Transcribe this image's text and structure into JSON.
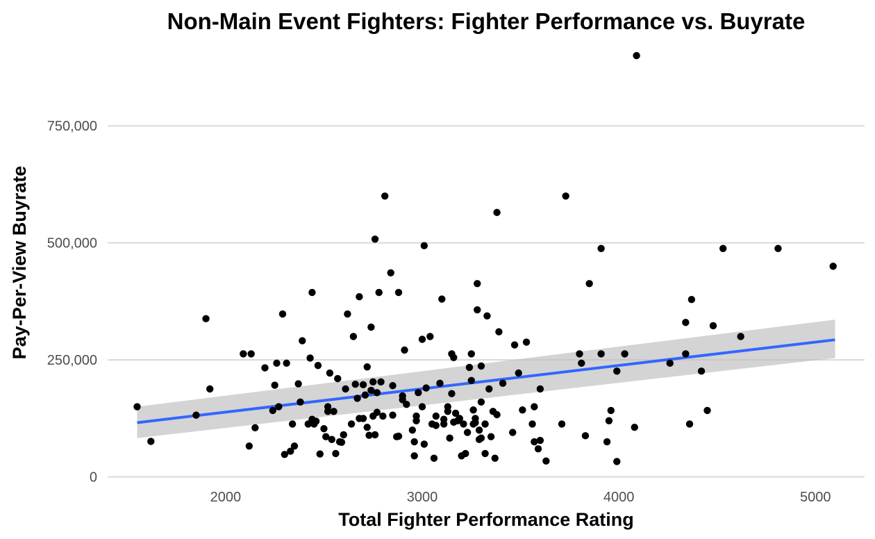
{
  "chart_data": {
    "type": "scatter",
    "title": "Non-Main Event Fighters: Fighter Performance vs. Buyrate",
    "xlabel": "Total Fighter Performance Rating",
    "ylabel": "Pay-Per-View Buyrate",
    "xlim": [
      1400,
      5250
    ],
    "ylim": [
      -5000,
      915000
    ],
    "x_ticks": [
      2000,
      3000,
      4000,
      5000
    ],
    "x_tick_labels": [
      "2000",
      "3000",
      "4000",
      "5000"
    ],
    "y_ticks": [
      0,
      250000,
      500000,
      750000
    ],
    "y_tick_labels": [
      "0",
      "250,000",
      "500,000",
      "750,000"
    ],
    "grid": true,
    "grid_lines": "horizontal major",
    "point_color": "#000000",
    "trend": {
      "method": "linear fit with 95% confidence band",
      "line_color": "#3366ff",
      "band_color": "#bdbdbd",
      "x": [
        1550,
        5100
      ],
      "y": [
        116000,
        293000
      ],
      "ci_lower": [
        83000,
        254000
      ],
      "ci_upper": [
        150000,
        336000
      ]
    },
    "points": [
      [
        1550,
        150000
      ],
      [
        1620,
        76000
      ],
      [
        1850,
        132000
      ],
      [
        1900,
        338000
      ],
      [
        1920,
        188000
      ],
      [
        2090,
        263000
      ],
      [
        2120,
        66000
      ],
      [
        2130,
        263000
      ],
      [
        2150,
        105000
      ],
      [
        2200,
        233000
      ],
      [
        2240,
        142000
      ],
      [
        2250,
        196000
      ],
      [
        2260,
        243000
      ],
      [
        2270,
        150000
      ],
      [
        2290,
        348000
      ],
      [
        2300,
        48000
      ],
      [
        2310,
        243000
      ],
      [
        2330,
        55000
      ],
      [
        2340,
        113000
      ],
      [
        2350,
        66000
      ],
      [
        2370,
        199000
      ],
      [
        2380,
        160000
      ],
      [
        2390,
        291000
      ],
      [
        2420,
        113000
      ],
      [
        2430,
        254000
      ],
      [
        2440,
        394000
      ],
      [
        2440,
        123000
      ],
      [
        2450,
        113000
      ],
      [
        2460,
        119000
      ],
      [
        2470,
        238000
      ],
      [
        2480,
        49000
      ],
      [
        2500,
        103000
      ],
      [
        2510,
        86000
      ],
      [
        2520,
        140000
      ],
      [
        2520,
        150000
      ],
      [
        2530,
        222000
      ],
      [
        2540,
        80000
      ],
      [
        2550,
        140000
      ],
      [
        2560,
        50000
      ],
      [
        2570,
        210000
      ],
      [
        2580,
        75000
      ],
      [
        2590,
        74000
      ],
      [
        2600,
        90000
      ],
      [
        2610,
        188000
      ],
      [
        2620,
        348000
      ],
      [
        2640,
        113000
      ],
      [
        2650,
        300000
      ],
      [
        2660,
        198000
      ],
      [
        2670,
        168000
      ],
      [
        2680,
        125000
      ],
      [
        2680,
        385000
      ],
      [
        2700,
        197000
      ],
      [
        2700,
        125000
      ],
      [
        2710,
        175000
      ],
      [
        2720,
        235000
      ],
      [
        2720,
        106000
      ],
      [
        2730,
        89000
      ],
      [
        2740,
        185000
      ],
      [
        2740,
        320000
      ],
      [
        2750,
        203000
      ],
      [
        2750,
        130000
      ],
      [
        2760,
        90000
      ],
      [
        2760,
        508000
      ],
      [
        2770,
        180000
      ],
      [
        2770,
        138000
      ],
      [
        2780,
        394000
      ],
      [
        2790,
        203000
      ],
      [
        2800,
        130000
      ],
      [
        2810,
        600000
      ],
      [
        2840,
        436000
      ],
      [
        2850,
        195000
      ],
      [
        2850,
        132000
      ],
      [
        2870,
        86000
      ],
      [
        2880,
        394000
      ],
      [
        2880,
        87000
      ],
      [
        2900,
        173000
      ],
      [
        2900,
        165000
      ],
      [
        2910,
        271000
      ],
      [
        2920,
        155000
      ],
      [
        2950,
        100000
      ],
      [
        2960,
        45000
      ],
      [
        2960,
        75000
      ],
      [
        2970,
        130000
      ],
      [
        2970,
        120000
      ],
      [
        2980,
        180000
      ],
      [
        3000,
        294000
      ],
      [
        3000,
        150000
      ],
      [
        3010,
        494000
      ],
      [
        3010,
        70000
      ],
      [
        3020,
        190000
      ],
      [
        3040,
        300000
      ],
      [
        3050,
        113000
      ],
      [
        3060,
        40000
      ],
      [
        3070,
        110000
      ],
      [
        3070,
        130000
      ],
      [
        3090,
        200000
      ],
      [
        3100,
        380000
      ],
      [
        3110,
        113000
      ],
      [
        3110,
        123000
      ],
      [
        3130,
        150000
      ],
      [
        3130,
        140000
      ],
      [
        3140,
        83000
      ],
      [
        3150,
        263000
      ],
      [
        3150,
        178000
      ],
      [
        3160,
        117000
      ],
      [
        3160,
        255000
      ],
      [
        3170,
        136000
      ],
      [
        3180,
        120000
      ],
      [
        3190,
        125000
      ],
      [
        3200,
        45000
      ],
      [
        3210,
        113000
      ],
      [
        3220,
        50000
      ],
      [
        3230,
        95000
      ],
      [
        3240,
        234000
      ],
      [
        3250,
        206000
      ],
      [
        3250,
        263000
      ],
      [
        3260,
        113000
      ],
      [
        3260,
        143000
      ],
      [
        3270,
        125000
      ],
      [
        3270,
        116000
      ],
      [
        3280,
        413000
      ],
      [
        3280,
        357000
      ],
      [
        3290,
        80000
      ],
      [
        3290,
        100000
      ],
      [
        3300,
        83000
      ],
      [
        3300,
        160000
      ],
      [
        3300,
        237000
      ],
      [
        3320,
        113000
      ],
      [
        3320,
        50000
      ],
      [
        3330,
        344000
      ],
      [
        3340,
        188000
      ],
      [
        3350,
        86000
      ],
      [
        3360,
        140000
      ],
      [
        3370,
        40000
      ],
      [
        3380,
        133000
      ],
      [
        3380,
        565000
      ],
      [
        3390,
        310000
      ],
      [
        3410,
        200000
      ],
      [
        3460,
        95000
      ],
      [
        3470,
        282000
      ],
      [
        3490,
        222000
      ],
      [
        3510,
        143000
      ],
      [
        3530,
        288000
      ],
      [
        3560,
        113000
      ],
      [
        3570,
        150000
      ],
      [
        3570,
        75000
      ],
      [
        3590,
        60000
      ],
      [
        3600,
        188000
      ],
      [
        3600,
        78000
      ],
      [
        3630,
        34000
      ],
      [
        3710,
        113000
      ],
      [
        3730,
        600000
      ],
      [
        3800,
        263000
      ],
      [
        3810,
        243000
      ],
      [
        3830,
        88000
      ],
      [
        3850,
        413000
      ],
      [
        3910,
        488000
      ],
      [
        3910,
        263000
      ],
      [
        3940,
        75000
      ],
      [
        3950,
        120000
      ],
      [
        3960,
        142000
      ],
      [
        3990,
        226000
      ],
      [
        3990,
        33000
      ],
      [
        4030,
        263000
      ],
      [
        4080,
        106000
      ],
      [
        4090,
        900000
      ],
      [
        4260,
        243000
      ],
      [
        4340,
        330000
      ],
      [
        4340,
        263000
      ],
      [
        4360,
        113000
      ],
      [
        4370,
        379000
      ],
      [
        4420,
        226000
      ],
      [
        4450,
        142000
      ],
      [
        4480,
        323000
      ],
      [
        4530,
        488000
      ],
      [
        4620,
        300000
      ],
      [
        4810,
        488000
      ],
      [
        5090,
        450000
      ]
    ]
  }
}
